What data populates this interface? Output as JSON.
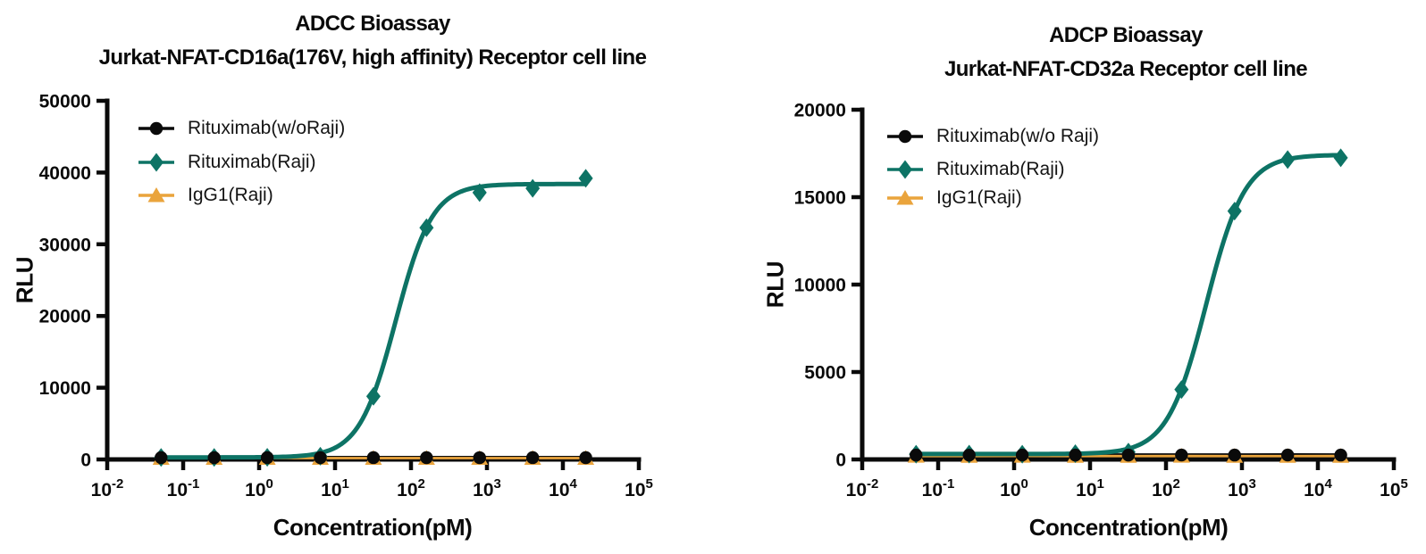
{
  "figure": {
    "background": "#ffffff"
  },
  "colors": {
    "black": "#0a0a0a",
    "teal": "#0d7365",
    "orange": "#eaa43c"
  },
  "chart_data": [
    {
      "type": "scatter",
      "title": "ADCC Bioassay",
      "subtitle": "Jurkat-NFAT-CD16a(176V, high affinity) Receptor cell line",
      "xlabel": "Concentration(pM)",
      "ylabel": "RLU",
      "x_scale": "log10",
      "xlim_exponents": [
        -2,
        5
      ],
      "x_tick_exponents": [
        -2,
        -1,
        0,
        1,
        2,
        3,
        4,
        5
      ],
      "y_ticks": [
        0,
        10000,
        20000,
        30000,
        40000,
        50000
      ],
      "ylim": [
        0,
        50000
      ],
      "grid": false,
      "legend_position": "inside-top-left",
      "x_pM": [
        0.0512,
        0.256,
        1.28,
        6.4,
        32,
        160,
        800,
        4000,
        20000
      ],
      "series": [
        {
          "name": "Rituximab(w/oRaji)",
          "marker": "circle",
          "color": "#0a0a0a",
          "values": [
            250,
            245,
            250,
            248,
            252,
            250,
            247,
            251,
            250
          ]
        },
        {
          "name": "Rituximab(Raji)",
          "marker": "diamond",
          "color": "#0d7365",
          "values": [
            280,
            285,
            295,
            450,
            8800,
            32300,
            37200,
            37800,
            39200
          ],
          "fit_4pl": {
            "bottom": 285,
            "top": 38400,
            "ec50_pM": 63,
            "hill": 1.8
          }
        },
        {
          "name": "IgG1(Raji)",
          "marker": "triangle",
          "color": "#eaa43c",
          "values": [
            190,
            188,
            192,
            190,
            189,
            191,
            190,
            188,
            190
          ]
        }
      ]
    },
    {
      "type": "scatter",
      "title": "ADCP Bioassay",
      "subtitle": "Jurkat-NFAT-CD32a Receptor cell line",
      "xlabel": "Concentration(pM)",
      "ylabel": "RLU",
      "x_scale": "log10",
      "xlim_exponents": [
        -2,
        5
      ],
      "x_tick_exponents": [
        -2,
        -1,
        0,
        1,
        2,
        3,
        4,
        5
      ],
      "y_ticks": [
        0,
        5000,
        10000,
        15000,
        20000
      ],
      "ylim": [
        0,
        20000
      ],
      "grid": false,
      "legend_position": "inside-top-left",
      "x_pM": [
        0.0512,
        0.256,
        1.28,
        6.4,
        32,
        160,
        800,
        4000,
        20000
      ],
      "series": [
        {
          "name": "Rituximab(w/o Raji)",
          "marker": "circle",
          "color": "#0a0a0a",
          "values": [
            250,
            248,
            252,
            250,
            249,
            251,
            250,
            252,
            250
          ]
        },
        {
          "name": "Rituximab(Raji)",
          "marker": "diamond",
          "color": "#0d7365",
          "values": [
            300,
            305,
            300,
            330,
            420,
            4000,
            14200,
            17150,
            17250
          ],
          "fit_4pl": {
            "bottom": 310,
            "top": 17420,
            "ec50_pM": 338,
            "hill": 1.7
          }
        },
        {
          "name": "IgG1(Raji)",
          "marker": "triangle",
          "color": "#eaa43c",
          "values": [
            195,
            192,
            196,
            194,
            190,
            195,
            193,
            191,
            194
          ]
        }
      ]
    }
  ]
}
